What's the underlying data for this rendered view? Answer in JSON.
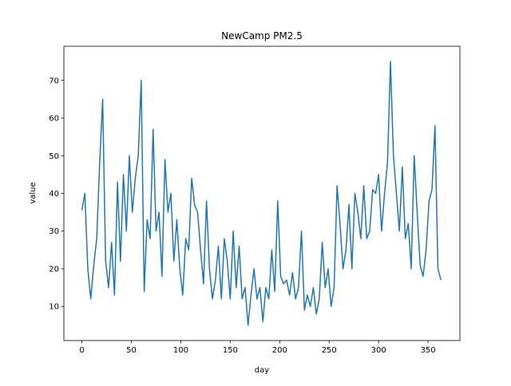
{
  "chart_data": {
    "type": "line",
    "title": "NewCamp PM2.5",
    "xlabel": "day",
    "ylabel": "value",
    "x": [
      0,
      3,
      6,
      9,
      12,
      15,
      18,
      21,
      24,
      27,
      30,
      33,
      36,
      39,
      42,
      45,
      48,
      51,
      54,
      57,
      60,
      63,
      66,
      69,
      72,
      75,
      78,
      81,
      84,
      87,
      90,
      93,
      96,
      99,
      102,
      105,
      108,
      111,
      114,
      117,
      120,
      123,
      126,
      129,
      132,
      135,
      138,
      141,
      144,
      147,
      150,
      153,
      156,
      159,
      162,
      165,
      168,
      171,
      174,
      177,
      180,
      183,
      186,
      189,
      192,
      195,
      198,
      201,
      204,
      207,
      210,
      213,
      216,
      219,
      222,
      225,
      228,
      231,
      234,
      237,
      240,
      243,
      246,
      249,
      252,
      255,
      258,
      261,
      264,
      267,
      270,
      273,
      276,
      279,
      282,
      285,
      288,
      291,
      294,
      297,
      300,
      303,
      306,
      309,
      312,
      315,
      318,
      321,
      324,
      327,
      330,
      333,
      336,
      339,
      342,
      345,
      348,
      351,
      354,
      357,
      360,
      363
    ],
    "series": [
      {
        "name": "PM2.5",
        "color": "#1f77b4",
        "values": [
          35.5,
          40,
          20,
          12,
          21,
          28,
          48,
          65,
          22,
          15,
          27,
          13,
          43,
          22,
          45,
          30,
          50,
          35,
          44,
          50,
          70,
          14,
          33,
          28,
          57,
          30,
          35,
          18,
          49,
          35,
          40,
          22,
          33,
          20,
          13,
          28,
          25,
          44,
          37,
          35,
          25,
          16,
          38,
          20,
          12,
          17,
          26,
          12,
          28,
          22,
          12,
          30,
          15,
          26,
          12,
          15,
          5,
          13,
          20,
          12,
          15,
          6,
          15,
          12,
          25,
          14,
          38,
          18,
          16,
          17,
          13,
          19,
          12,
          15,
          30,
          9,
          13,
          10,
          15,
          8,
          12,
          27,
          15,
          20,
          10,
          15,
          42,
          32,
          20,
          25,
          37,
          20,
          40,
          35,
          28,
          42,
          28,
          30,
          41,
          40,
          45,
          30,
          40,
          48,
          75,
          50,
          40,
          30,
          47,
          28,
          32,
          20,
          50,
          35,
          21,
          18,
          25,
          38,
          41,
          58,
          20,
          17
        ]
      }
    ],
    "xlim": [
      -18.2,
      382.2
    ],
    "ylim": [
      0.95,
      79.05
    ],
    "xticks": [
      0,
      50,
      100,
      150,
      200,
      250,
      300,
      350
    ],
    "yticks": [
      10,
      20,
      30,
      40,
      50,
      60,
      70
    ]
  }
}
